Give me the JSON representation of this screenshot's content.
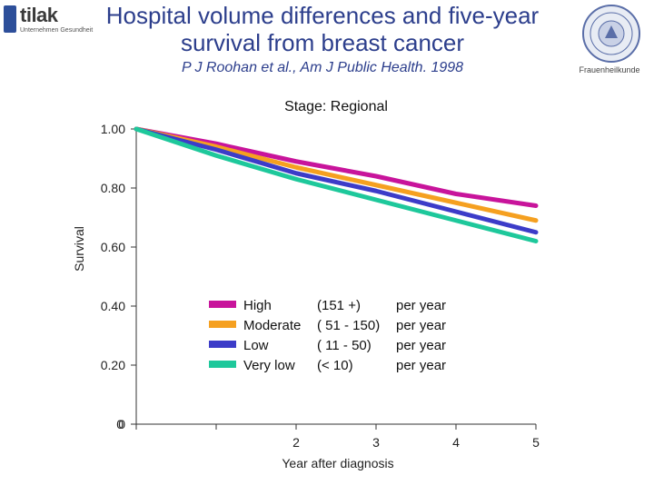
{
  "header": {
    "title": "Hospital volume differences and five-year survival from breast cancer",
    "subtitle": "P J Roohan et al., Am J Public Health. 1998",
    "logo_left_text": "tilak",
    "logo_left_tagline": "Unternehmen Gesundheit",
    "logo_right_caption": "Frauenheilkunde"
  },
  "colors": {
    "title": "#2c3e8c",
    "high": "#c8149b",
    "moderate": "#f5a020",
    "low": "#3c3cc8",
    "very_low": "#1ec89b"
  },
  "chart_data": {
    "type": "line",
    "title": "Stage: Regional",
    "xlabel": "Year after diagnosis",
    "ylabel": "Survival",
    "x_ticks": [
      "0",
      "1",
      "2",
      "3",
      "4",
      "5"
    ],
    "x_tick_labels_shown": [
      "2",
      "3",
      "4",
      "5"
    ],
    "y_ticks": [
      "1.00",
      "0.80",
      "0.60",
      "0.40",
      "0.20",
      "0"
    ],
    "xlim": [
      0,
      5
    ],
    "ylim": [
      0,
      1
    ],
    "x": [
      0,
      1,
      2,
      3,
      4,
      5
    ],
    "legend_position": "center",
    "series": [
      {
        "name": "High (151 +) per year",
        "legend_parts": [
          "High",
          "(151 +)",
          "per year"
        ],
        "color": "#c8149b",
        "values": [
          1.0,
          0.95,
          0.89,
          0.84,
          0.78,
          0.74
        ]
      },
      {
        "name": "Moderate ( 51 - 150) per year",
        "legend_parts": [
          "Moderate",
          "( 51 - 150)",
          "per year"
        ],
        "color": "#f5a020",
        "values": [
          1.0,
          0.94,
          0.87,
          0.81,
          0.75,
          0.69
        ]
      },
      {
        "name": "Low ( 11 - 50) per year",
        "legend_parts": [
          "Low",
          "( 11 - 50)",
          "per year"
        ],
        "color": "#3c3cc8",
        "values": [
          1.0,
          0.93,
          0.85,
          0.79,
          0.72,
          0.65
        ]
      },
      {
        "name": "Very low (< 10) per year",
        "legend_parts": [
          "Very low",
          "(< 10)",
          "per year"
        ],
        "color": "#1ec89b",
        "values": [
          1.0,
          0.91,
          0.83,
          0.76,
          0.69,
          0.62
        ]
      }
    ]
  }
}
